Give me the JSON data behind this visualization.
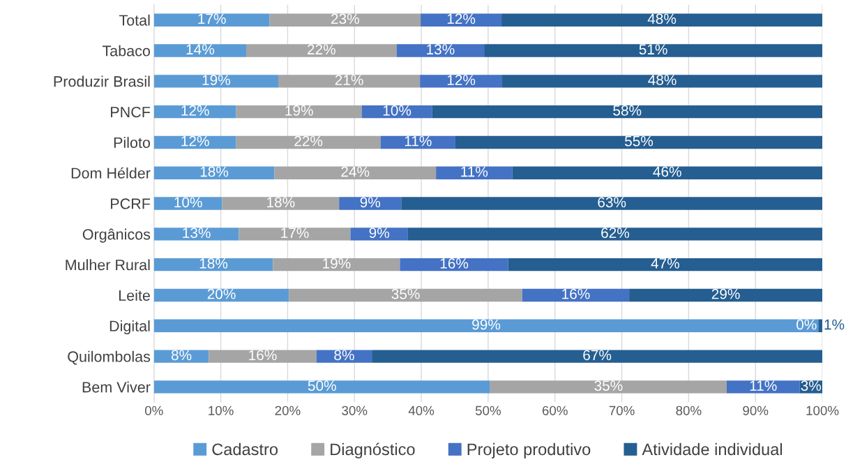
{
  "chart_data": {
    "type": "bar",
    "orientation": "horizontal",
    "stacked": true,
    "categories": [
      "Total",
      "Tabaco",
      "Produzir Brasil",
      "PNCF",
      "Piloto",
      "Dom Hélder",
      "PCRF",
      "Orgânicos",
      "Mulher Rural",
      "Leite",
      "Digital",
      "Quilombolas",
      "Bem Viver"
    ],
    "series": [
      {
        "name": "Cadastro",
        "color": "#5b9bd5",
        "values": [
          17.3,
          13.8,
          18.6,
          12.3,
          12.3,
          18.0,
          10.2,
          12.7,
          17.8,
          20.2,
          99.4,
          8.2,
          50.3
        ],
        "value_labels": [
          "17%",
          "14%",
          "19%",
          "12%",
          "12%",
          "18%",
          "10%",
          "13%",
          "18%",
          "20%",
          "99%",
          "8%",
          "50%"
        ]
      },
      {
        "name": "Diagnóstico",
        "color": "#a5a5a5",
        "values": [
          22.6,
          22.5,
          21.2,
          18.8,
          21.6,
          24.2,
          17.5,
          16.7,
          19.0,
          34.9,
          0,
          16.1,
          35.4
        ],
        "value_labels": [
          "23%",
          "22%",
          "21%",
          "19%",
          "22%",
          "24%",
          "18%",
          "17%",
          "19%",
          "35%",
          "0%",
          "16%",
          "35%"
        ]
      },
      {
        "name": "Projeto produtivo",
        "color": "#4472c4",
        "values": [
          12.1,
          13.1,
          12.3,
          10.5,
          11.2,
          11.4,
          9.3,
          8.6,
          16.2,
          16.0,
          0,
          8.3,
          10.9
        ],
        "value_labels": [
          "12%",
          "13%",
          "12%",
          "10%",
          "11%",
          "11%",
          "9%",
          "9%",
          "16%",
          "16%",
          null,
          "8%",
          "11%"
        ]
      },
      {
        "name": "Atividade individual",
        "color": "#255e91",
        "values": [
          48.0,
          50.6,
          47.9,
          58.4,
          54.9,
          46.4,
          63.0,
          62.0,
          47.0,
          28.9,
          0.6,
          67.4,
          3.4
        ],
        "value_labels": [
          "48%",
          "51%",
          "48%",
          "58%",
          "55%",
          "46%",
          "63%",
          "62%",
          "47%",
          "29%",
          "1%",
          "67%",
          "3%"
        ]
      }
    ],
    "xlim": [
      0,
      100
    ],
    "xticks": [
      {
        "value": 0,
        "label": "0%"
      },
      {
        "value": 10,
        "label": "10%"
      },
      {
        "value": 20,
        "label": "20%"
      },
      {
        "value": 30,
        "label": "30%"
      },
      {
        "value": 40,
        "label": "40%"
      },
      {
        "value": 50,
        "label": "50%"
      },
      {
        "value": 60,
        "label": "60%"
      },
      {
        "value": 70,
        "label": "70%"
      },
      {
        "value": 80,
        "label": "80%"
      },
      {
        "value": 90,
        "label": "90%"
      },
      {
        "value": 100,
        "label": "100%"
      }
    ],
    "grid": "x",
    "legend": "bottom"
  }
}
